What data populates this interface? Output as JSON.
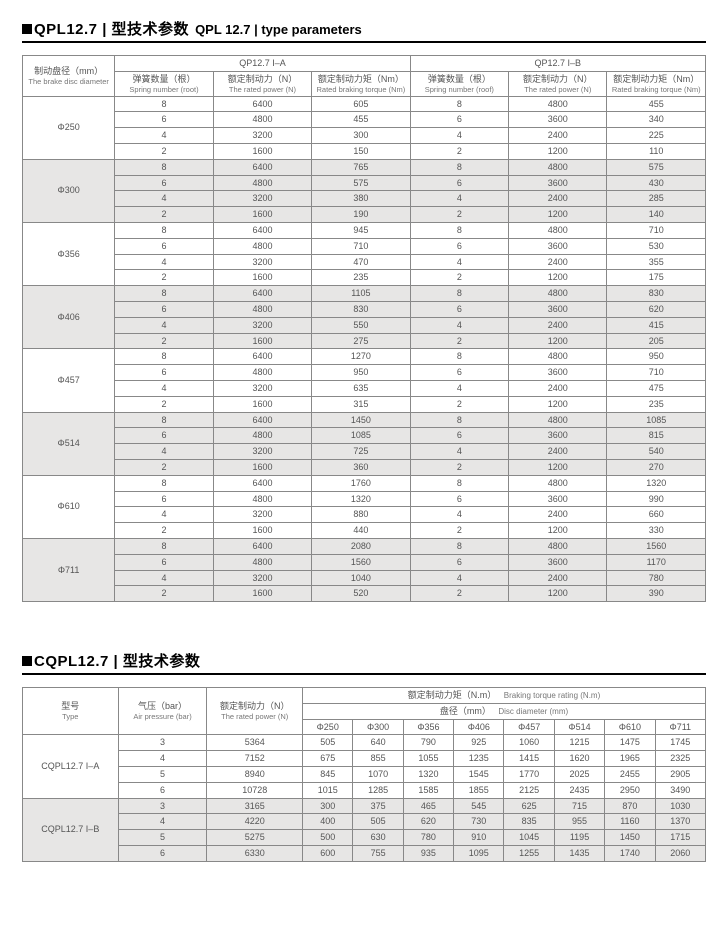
{
  "table1": {
    "title_main": "QPL12.7 | 型技术参数",
    "title_sub": "QPL 12.7  |  type parameters",
    "group_a": "QP12.7  I–A",
    "group_b": "QP12.7  I–B",
    "col0_cn": "制动盘径（mm）",
    "col0_en": "The brake disc diameter",
    "col_spring_cn": "弹簧数量（根）",
    "col_spring_en": "Spring number (root)",
    "col_power_cn": "额定制动力（N）",
    "col_power_en": "The rated power (N)",
    "col_torque_cn": "额定制动力矩（Nm）",
    "col_torque_en": "Rated braking torque (Nm)",
    "col_spring_en_b": "Spring number (roof)",
    "diameters": [
      "Φ250",
      "Φ300",
      "Φ356",
      "Φ406",
      "Φ457",
      "Φ514",
      "Φ610",
      "Φ711"
    ],
    "springs": [
      8,
      6,
      4,
      2
    ],
    "power_a": [
      6400,
      4800,
      3200,
      1600
    ],
    "power_b": [
      4800,
      3600,
      2400,
      1200
    ],
    "torque_a": [
      [
        605,
        455,
        300,
        150
      ],
      [
        765,
        575,
        380,
        190
      ],
      [
        945,
        710,
        470,
        235
      ],
      [
        1105,
        830,
        550,
        275
      ],
      [
        1270,
        950,
        635,
        315
      ],
      [
        1450,
        1085,
        725,
        360
      ],
      [
        1760,
        1320,
        880,
        440
      ],
      [
        2080,
        1560,
        1040,
        520
      ]
    ],
    "torque_b": [
      [
        455,
        340,
        225,
        110
      ],
      [
        575,
        430,
        285,
        140
      ],
      [
        710,
        530,
        355,
        175
      ],
      [
        830,
        620,
        415,
        205
      ],
      [
        950,
        710,
        475,
        235
      ],
      [
        1085,
        815,
        540,
        270
      ],
      [
        1320,
        990,
        660,
        330
      ],
      [
        1560,
        1170,
        780,
        390
      ]
    ],
    "grey_groups": [
      1,
      3,
      5,
      7
    ]
  },
  "table2": {
    "title_main": "CQPL12.7 | 型技术参数",
    "col0_cn": "型号",
    "col0_en": "Type",
    "col1_cn": "气压（bar）",
    "col1_en": "Air pressure (bar)",
    "col2_cn": "额定制动力（N）",
    "col2_en": "The rated power (N)",
    "torque_cn": "额定制动力矩（N.m）",
    "torque_en": "Braking torque rating (N.m)",
    "dia_cn": "盘径（mm）",
    "dia_en": "Disc diameter (mm)",
    "dia_cols": [
      "Φ250",
      "Φ300",
      "Φ356",
      "Φ406",
      "Φ457",
      "Φ514",
      "Φ610",
      "Φ711"
    ],
    "types": [
      "CQPL12.7  I–A",
      "CQPL12.7  I–B"
    ],
    "pressures": [
      3,
      4,
      5,
      6
    ],
    "power": [
      [
        5364,
        7152,
        8940,
        10728
      ],
      [
        3165,
        4220,
        5275,
        6330
      ]
    ],
    "torque": [
      [
        [
          505,
          640,
          790,
          925,
          1060,
          1215,
          1475,
          1745
        ],
        [
          675,
          855,
          1055,
          1235,
          1415,
          1620,
          1965,
          2325
        ],
        [
          845,
          1070,
          1320,
          1545,
          1770,
          2025,
          2455,
          2905
        ],
        [
          1015,
          1285,
          1585,
          1855,
          2125,
          2435,
          2950,
          3490
        ]
      ],
      [
        [
          300,
          375,
          465,
          545,
          625,
          715,
          870,
          1030
        ],
        [
          400,
          505,
          620,
          730,
          835,
          955,
          1160,
          1370
        ],
        [
          500,
          630,
          780,
          910,
          1045,
          1195,
          1450,
          1715
        ],
        [
          600,
          755,
          935,
          1095,
          1255,
          1435,
          1740,
          2060
        ]
      ]
    ],
    "grey_type": 1
  }
}
